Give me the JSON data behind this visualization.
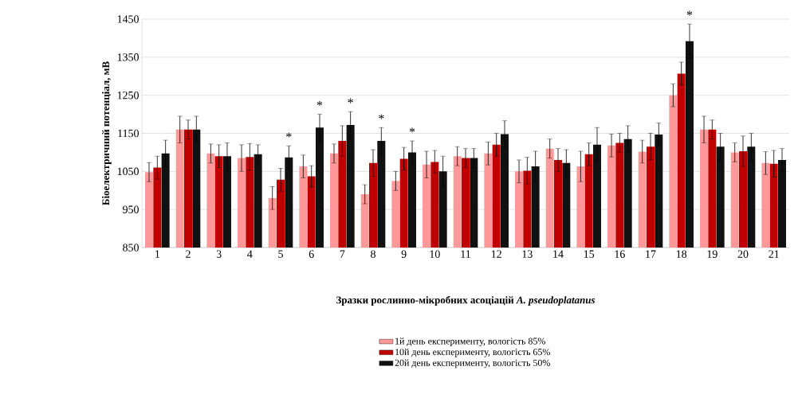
{
  "chart_data": {
    "type": "bar",
    "xlabel": "Зразки рослинно-мікробних асоціацій *A. pseudoplatanus*",
    "ylabel": "Біоелектричний потенціал, мВ",
    "categories": [
      "1",
      "2",
      "3",
      "4",
      "5",
      "6",
      "7",
      "8",
      "9",
      "10",
      "11",
      "12",
      "13",
      "14",
      "15",
      "16",
      "17",
      "18",
      "19",
      "20",
      "21"
    ],
    "series": [
      {
        "name": "1й день експерименту,  вологість 85%",
        "color": "#ff9999",
        "values": [
          1048,
          1160,
          1097,
          1085,
          980,
          1063,
          1097,
          990,
          1025,
          1068,
          1090,
          1097,
          1050,
          1110,
          1063,
          1118,
          1102,
          1250,
          1160,
          1100,
          1072
        ],
        "errors": [
          25,
          35,
          25,
          35,
          30,
          30,
          25,
          25,
          25,
          35,
          25,
          30,
          30,
          25,
          40,
          30,
          30,
          30,
          35,
          25,
          30
        ]
      },
      {
        "name": "10й день експерименту,  вологість 65%",
        "color": "#c00000",
        "values": [
          1060,
          1160,
          1090,
          1088,
          1028,
          1037,
          1130,
          1072,
          1083,
          1075,
          1085,
          1120,
          1052,
          1080,
          1095,
          1125,
          1115,
          1307,
          1160,
          1103,
          1070
        ],
        "errors": [
          30,
          25,
          30,
          35,
          30,
          28,
          40,
          35,
          30,
          30,
          25,
          30,
          35,
          30,
          30,
          25,
          35,
          30,
          25,
          40,
          35
        ]
      },
      {
        "name": "20й день експерименту,  вологість 50%",
        "color": "#111111",
        "values": [
          1097,
          1160,
          1090,
          1095,
          1087,
          1165,
          1172,
          1130,
          1100,
          1050,
          1085,
          1148,
          1063,
          1072,
          1120,
          1135,
          1147,
          1392,
          1115,
          1115,
          1080
        ],
        "errors": [
          35,
          35,
          35,
          25,
          30,
          35,
          35,
          35,
          30,
          40,
          25,
          35,
          40,
          35,
          45,
          35,
          30,
          45,
          35,
          35,
          30
        ],
        "value_labels": [
          null,
          null,
          null,
          null,
          "*",
          "*",
          "*",
          "*",
          "*",
          null,
          null,
          null,
          null,
          null,
          null,
          null,
          null,
          "*",
          null,
          null,
          null
        ]
      }
    ],
    "ylim": [
      850,
      1450
    ],
    "yticks": [
      850,
      950,
      1050,
      1150,
      1250,
      1350,
      1450
    ],
    "grid": "y",
    "legend": "bottom"
  }
}
